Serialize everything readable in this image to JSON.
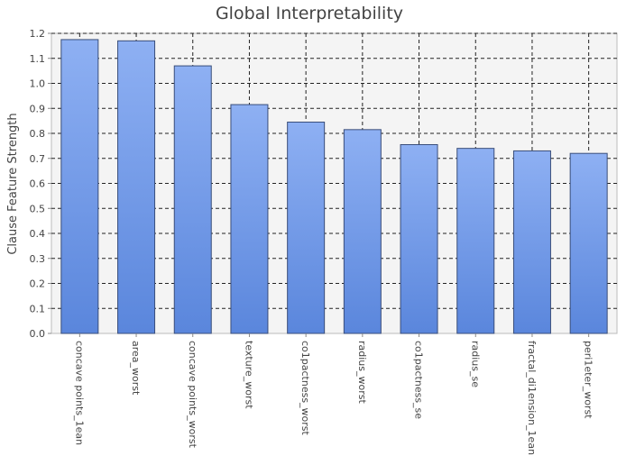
{
  "chart_data": {
    "type": "bar",
    "title": "Global Interpretability",
    "xlabel": "",
    "ylabel": "Clause Feature Strength",
    "ylim": [
      0,
      1.2
    ],
    "yticks": [
      "0.0",
      "0.1",
      "0.2",
      "0.3",
      "0.4",
      "0.5",
      "0.6",
      "0.7",
      "0.8",
      "0.9",
      "1.0",
      "1.1",
      "1.2"
    ],
    "categories": [
      "concave points_1ean",
      "area_worst",
      "concave points_worst",
      "texture_worst",
      "co1pactness_worst",
      "radius_worst",
      "co1pactness_se",
      "radius_se",
      "fractal_di1ension_1ean",
      "peri1eter_worst"
    ],
    "values": [
      1.175,
      1.17,
      1.07,
      0.915,
      0.845,
      0.815,
      0.755,
      0.74,
      0.73,
      0.72
    ],
    "grid": true,
    "colors": {
      "bar_top": "#8eb0f3",
      "bar_bottom": "#5a86dc",
      "bar_stroke": "#3a4e7a",
      "plot_bg": "#f4f4f4",
      "grid": "#222222",
      "text": "#444444"
    }
  }
}
